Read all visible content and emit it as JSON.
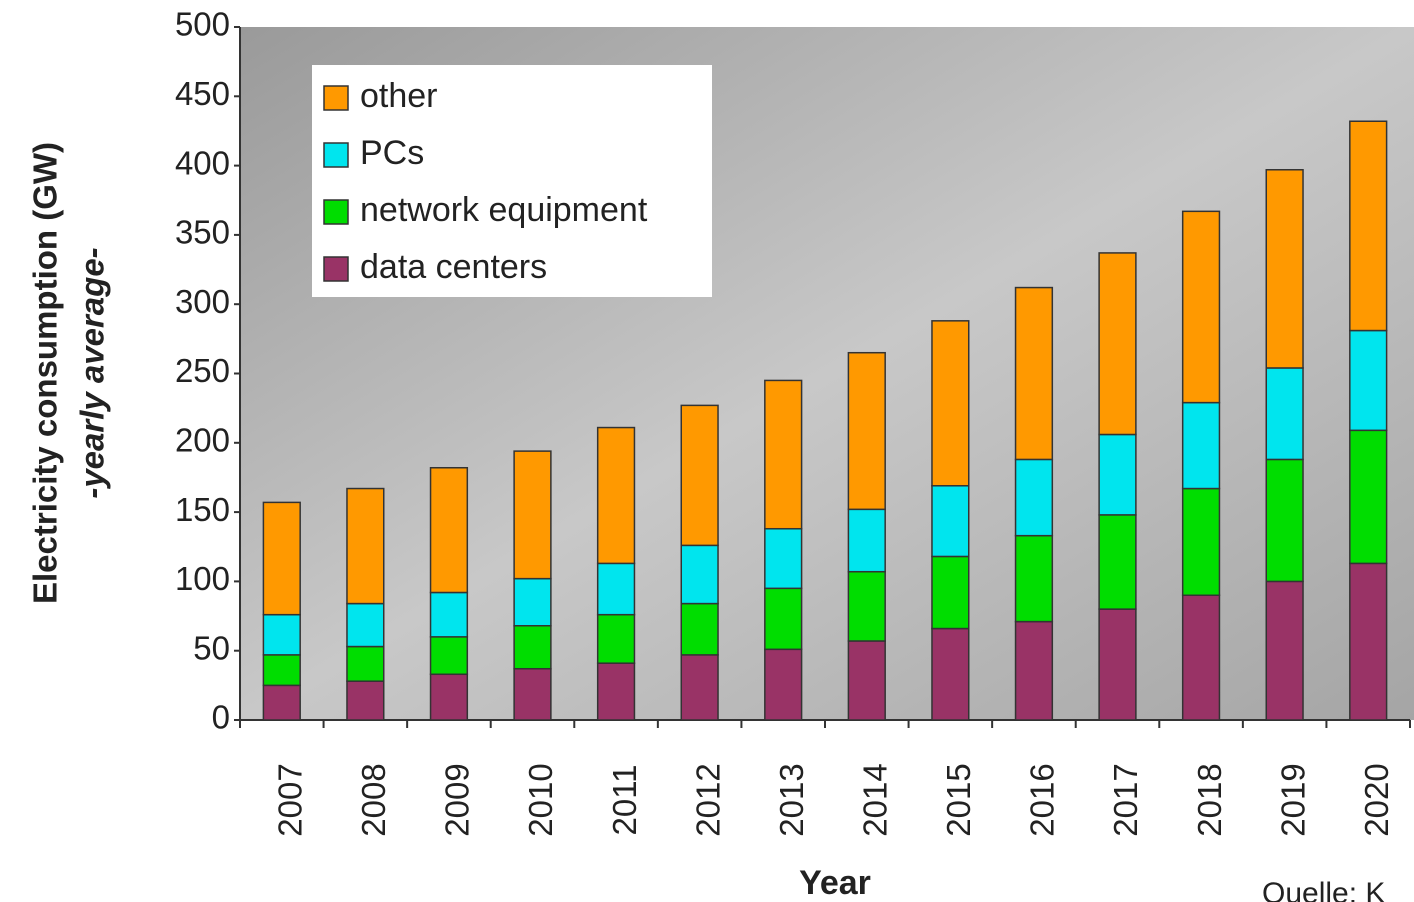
{
  "chart_data": {
    "type": "stacked_bar",
    "y_label": "Electricity consumption (GW)",
    "y_sublabel": "-yearly average-",
    "x_label": "Year",
    "source": "Quelle: K",
    "categories": [
      "2007",
      "2008",
      "2009",
      "2010",
      "2011",
      "2012",
      "2013",
      "2014",
      "2015",
      "2016",
      "2017",
      "2018",
      "2019",
      "2020"
    ],
    "series": [
      {
        "name": "other",
        "color": "#ff9900",
        "values": [
          81,
          83,
          90,
          92,
          98,
          101,
          107,
          113,
          119,
          124,
          131,
          138,
          143,
          151
        ]
      },
      {
        "name": "PCs",
        "color": "#00e5ee",
        "values": [
          29,
          31,
          32,
          34,
          37,
          42,
          43,
          45,
          51,
          55,
          58,
          62,
          66,
          72
        ]
      },
      {
        "name": "network equipment",
        "color": "#00dd00",
        "values": [
          22,
          25,
          27,
          31,
          35,
          37,
          44,
          50,
          52,
          62,
          68,
          77,
          88,
          96
        ]
      },
      {
        "name": "data centers",
        "color": "#993366",
        "values": [
          25,
          28,
          33,
          37,
          41,
          47,
          51,
          57,
          66,
          71,
          80,
          90,
          100,
          113
        ]
      }
    ],
    "ylim": [
      0,
      500
    ],
    "yticks": [
      0,
      50,
      100,
      150,
      200,
      250,
      300,
      350,
      400,
      450,
      500
    ],
    "legend": "top-left"
  }
}
